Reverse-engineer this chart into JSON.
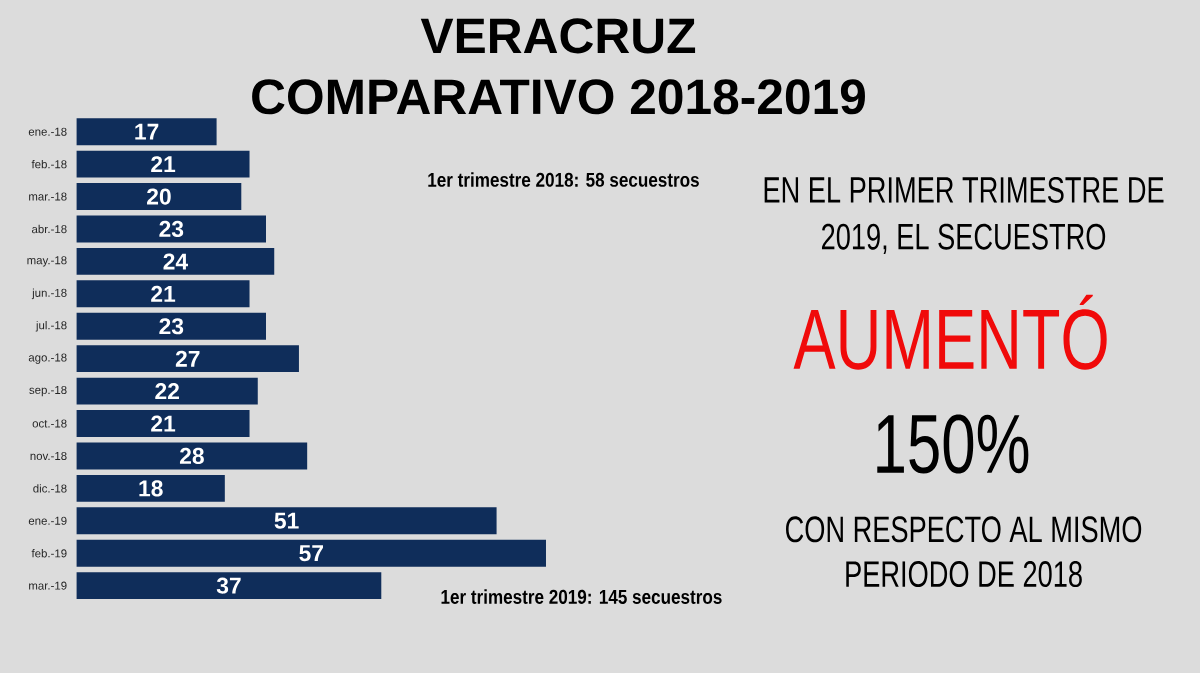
{
  "chart_data": {
    "type": "bar",
    "orientation": "horizontal",
    "title": "VERACRUZ",
    "subtitle": "COMPARATIVO 2018-2019",
    "categories": [
      "ene.-18",
      "feb.-18",
      "mar.-18",
      "abr.-18",
      "may.-18",
      "jun.-18",
      "jul.-18",
      "ago.-18",
      "sep.-18",
      "oct.-18",
      "nov.-18",
      "dic.-18",
      "ene.-19",
      "feb.-19",
      "mar.-19"
    ],
    "values": [
      17,
      21,
      20,
      23,
      24,
      21,
      23,
      27,
      22,
      21,
      28,
      18,
      51,
      57,
      37
    ],
    "color": "#0f2d5a",
    "data_labels": true,
    "annotations": [
      "1er trimestre 2018: 58 secuestros",
      "1er trimestre 2019: 145 secuestros",
      "EN EL PRIMER TRIMESTRE DE 2019, EL SECUESTRO",
      "AUMENTÓ",
      "150%",
      "CON RESPECTO AL MISMO PERIODO DE 2018"
    ]
  }
}
